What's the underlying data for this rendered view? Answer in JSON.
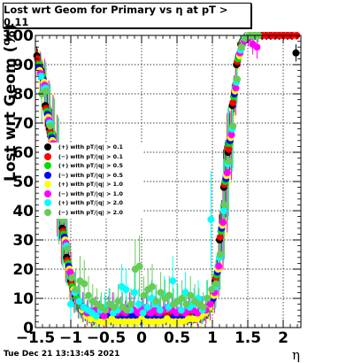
{
  "title": "Lost wrt Geom for Primary vs  η at pT > 0.11",
  "ylabel": "Lost wrt Geom (%)",
  "xlabel": "η",
  "timestamp": "Tue Dec 21 13:13:45 2021",
  "chart_data": {
    "type": "scatter",
    "title": "Lost wrt Geom for Primary vs  η at pT > 0.11",
    "xlabel": "η",
    "ylabel": "Lost wrt Geom (%)",
    "xlim": [
      -1.5,
      2.25
    ],
    "ylim": [
      0,
      100
    ],
    "grid": true,
    "legend_position": "middle-left",
    "x_ticks": [
      -1.5,
      -1,
      -0.5,
      0,
      0.5,
      1,
      1.5,
      2
    ],
    "x_tick_labels": [
      "−1.5",
      "−1",
      "−0.5",
      "0",
      "0.5",
      "1",
      "1.5",
      "2"
    ],
    "y_ticks": [
      0,
      10,
      20,
      30,
      40,
      50,
      60,
      70,
      80,
      90,
      100
    ],
    "y_tick_labels": [
      "0",
      "10",
      "20",
      "30",
      "40",
      "50",
      "60",
      "70",
      "80",
      "90",
      "100"
    ],
    "series": [
      {
        "name": "(+) with pT/|q| > 0.1",
        "color": "#000000",
        "x": [
          -1.48,
          -1.42,
          -1.36,
          -1.3,
          -1.24,
          -1.18,
          -1.12,
          -1.06,
          -1.0,
          -0.94,
          -0.88,
          -0.82,
          -0.76,
          -0.7,
          -0.64,
          -0.58,
          -0.52,
          -0.46,
          -0.4,
          -0.34,
          -0.28,
          -0.22,
          -0.16,
          -0.1,
          -0.04,
          0.02,
          0.08,
          0.14,
          0.2,
          0.26,
          0.32,
          0.38,
          0.44,
          0.5,
          0.56,
          0.62,
          0.68,
          0.74,
          0.8,
          0.86,
          0.92,
          0.98,
          1.04,
          1.1,
          1.16,
          1.22,
          1.28,
          1.34,
          1.4,
          1.46,
          1.52,
          1.58,
          1.64,
          1.7,
          1.76,
          1.82,
          1.88,
          1.94,
          2.0,
          2.06,
          2.12,
          2.18
        ],
        "y": [
          93,
          88,
          76,
          68,
          57,
          44,
          34,
          24,
          16,
          11,
          9,
          7,
          6,
          5,
          4,
          4,
          4,
          4,
          4,
          4,
          4,
          4,
          4,
          4,
          4,
          4,
          4,
          4,
          4,
          4,
          4,
          4,
          4,
          4,
          4,
          4,
          4,
          4,
          5,
          5,
          6,
          9,
          16,
          30,
          48,
          60,
          76,
          90,
          97,
          99,
          100,
          100,
          100,
          100,
          100,
          100,
          100,
          100,
          100,
          100,
          100,
          94
        ]
      },
      {
        "name": "(−) with pT/|q| > 0.1",
        "color": "#ff0000",
        "x": [
          -1.47,
          -1.41,
          -1.35,
          -1.29,
          -1.23,
          -1.17,
          -1.11,
          -1.05,
          -0.99,
          -0.93,
          -0.87,
          -0.81,
          -0.75,
          -0.69,
          -0.63,
          -0.57,
          -0.51,
          -0.45,
          -0.39,
          -0.33,
          -0.27,
          -0.21,
          -0.15,
          -0.09,
          -0.03,
          0.03,
          0.09,
          0.15,
          0.21,
          0.27,
          0.33,
          0.39,
          0.45,
          0.51,
          0.57,
          0.63,
          0.69,
          0.75,
          0.81,
          0.87,
          0.93,
          0.99,
          1.05,
          1.11,
          1.17,
          1.23,
          1.29,
          1.35,
          1.41,
          1.47,
          1.53,
          1.59,
          1.65,
          1.71,
          1.77,
          1.83,
          1.89,
          1.95,
          2.01,
          2.07,
          2.13,
          2.19
        ],
        "y": [
          92,
          87,
          75,
          67,
          56,
          43,
          33,
          23,
          15,
          10,
          8,
          6,
          5,
          4,
          4,
          4,
          4,
          4,
          5,
          4,
          4,
          5,
          4,
          4,
          4,
          4,
          4,
          5,
          4,
          5,
          4,
          4,
          4,
          4,
          4,
          5,
          4,
          5,
          5,
          5,
          6,
          9,
          17,
          31,
          49,
          61,
          77,
          91,
          97,
          99,
          100,
          100,
          100,
          100,
          100,
          100,
          100,
          100,
          100,
          100,
          100,
          100
        ]
      },
      {
        "name": "(+) with pT/|q| > 0.5",
        "color": "#00dd00",
        "x": [
          -1.46,
          -1.4,
          -1.34,
          -1.28,
          -1.22,
          -1.16,
          -1.1,
          -1.04,
          -0.98,
          -0.92,
          -0.86,
          -0.8,
          -0.74,
          -0.68,
          -0.62,
          -0.56,
          -0.5,
          -0.44,
          -0.38,
          -0.32,
          -0.26,
          -0.2,
          -0.14,
          -0.08,
          -0.02,
          0.04,
          0.1,
          0.16,
          0.22,
          0.28,
          0.34,
          0.4,
          0.46,
          0.52,
          0.58,
          0.64,
          0.7,
          0.76,
          0.82,
          0.88,
          0.94,
          1.0,
          1.06,
          1.12,
          1.18,
          1.24,
          1.3,
          1.36,
          1.42,
          1.48,
          1.54,
          1.6
        ],
        "y": [
          90,
          86,
          74,
          66,
          55,
          42,
          32,
          22,
          14,
          10,
          7,
          5,
          4,
          3,
          3,
          3,
          3,
          3,
          3,
          3,
          3,
          3,
          3,
          3,
          3,
          3,
          3,
          3,
          3,
          3,
          3,
          3,
          3,
          3,
          3,
          3,
          3,
          4,
          4,
          5,
          6,
          10,
          18,
          33,
          50,
          63,
          79,
          92,
          98,
          99,
          100,
          100
        ]
      },
      {
        "name": "(−) with pT/|q| > 0.5",
        "color": "#0000ff",
        "x": [
          -1.45,
          -1.39,
          -1.33,
          -1.27,
          -1.21,
          -1.15,
          -1.09,
          -1.03,
          -0.97,
          -0.91,
          -0.85,
          -0.79,
          -0.73,
          -0.67,
          -0.61,
          -0.55,
          -0.49,
          -0.43,
          -0.37,
          -0.31,
          -0.25,
          -0.19,
          -0.13,
          -0.07,
          -0.01,
          0.05,
          0.11,
          0.17,
          0.23,
          0.29,
          0.35,
          0.41,
          0.47,
          0.53,
          0.59,
          0.65,
          0.71,
          0.77,
          0.83,
          0.89,
          0.95,
          1.01,
          1.07,
          1.13,
          1.19,
          1.25,
          1.31,
          1.37,
          1.43,
          1.49,
          1.55,
          1.61
        ],
        "y": [
          89,
          85,
          73,
          65,
          54,
          41,
          31,
          21,
          13,
          9,
          6,
          5,
          4,
          3,
          3,
          3,
          4,
          3,
          3,
          3,
          3,
          3,
          4,
          3,
          3,
          3,
          3,
          3,
          3,
          3,
          3,
          3,
          4,
          3,
          3,
          3,
          3,
          4,
          4,
          5,
          7,
          10,
          19,
          34,
          51,
          64,
          80,
          93,
          98,
          100,
          100,
          100
        ]
      },
      {
        "name": "(+) with pT/|q| > 1.0",
        "color": "#ffff00",
        "x": [
          -1.44,
          -1.38,
          -1.32,
          -1.26,
          -1.2,
          -1.14,
          -1.08,
          -1.02,
          -0.96,
          -0.9,
          -0.84,
          -0.78,
          -0.72,
          -0.66,
          -0.6,
          -0.54,
          -0.48,
          -0.42,
          -0.36,
          -0.3,
          -0.24,
          -0.18,
          -0.12,
          -0.06,
          0.0,
          0.06,
          0.12,
          0.18,
          0.24,
          0.3,
          0.36,
          0.42,
          0.48,
          0.54,
          0.6,
          0.66,
          0.72,
          0.78,
          0.84,
          0.9,
          0.96,
          1.02,
          1.08,
          1.14,
          1.2,
          1.26,
          1.32,
          1.38,
          1.44,
          1.5,
          1.56,
          1.62
        ],
        "y": [
          88,
          84,
          72,
          64,
          53,
          40,
          30,
          20,
          13,
          9,
          6,
          4,
          3,
          3,
          2,
          2,
          2,
          3,
          2,
          2,
          2,
          2,
          2,
          2,
          3,
          2,
          2,
          2,
          2,
          2,
          3,
          2,
          2,
          2,
          2,
          3,
          3,
          3,
          4,
          5,
          7,
          11,
          20,
          35,
          52,
          65,
          81,
          93,
          98,
          100,
          100,
          100
        ]
      },
      {
        "name": "(−) with pT/|q| > 1.0",
        "color": "#ff00ff",
        "x": [
          -1.43,
          -1.37,
          -1.31,
          -1.25,
          -1.19,
          -1.13,
          -1.07,
          -1.01,
          -0.95,
          -0.89,
          -0.83,
          -0.77,
          -0.71,
          -0.65,
          -0.59,
          -0.53,
          -0.47,
          -0.41,
          -0.35,
          -0.29,
          -0.23,
          -0.17,
          -0.11,
          -0.05,
          0.01,
          0.07,
          0.13,
          0.19,
          0.25,
          0.31,
          0.37,
          0.43,
          0.49,
          0.55,
          0.61,
          0.67,
          0.73,
          0.79,
          0.85,
          0.91,
          0.97,
          1.03,
          1.09,
          1.15,
          1.21,
          1.27,
          1.33,
          1.39,
          1.45,
          1.51,
          1.57,
          1.63
        ],
        "y": [
          87,
          83,
          71,
          63,
          52,
          39,
          29,
          19,
          12,
          9,
          7,
          5,
          5,
          6,
          5,
          4,
          6,
          7,
          5,
          6,
          5,
          7,
          6,
          5,
          6,
          7,
          5,
          6,
          5,
          6,
          7,
          6,
          5,
          6,
          5,
          6,
          6,
          5,
          6,
          6,
          8,
          12,
          21,
          36,
          53,
          66,
          82,
          94,
          98,
          99,
          97,
          96
        ]
      },
      {
        "name": "(+) with pT/|q| > 2.0",
        "color": "#00ffff",
        "x": [
          -1.42,
          -1.36,
          -1.3,
          -1.24,
          -1.18,
          -1.12,
          -1.06,
          -1.0,
          -0.94,
          -0.88,
          -0.82,
          -0.76,
          -0.7,
          -0.64,
          -0.58,
          -0.52,
          -0.46,
          -0.4,
          -0.34,
          -0.28,
          -0.22,
          -0.16,
          -0.1,
          -0.04,
          0.02,
          0.08,
          0.14,
          0.2,
          0.26,
          0.32,
          0.38,
          0.44,
          0.5,
          0.56,
          0.62,
          0.68,
          0.74,
          0.8,
          0.86,
          0.92,
          0.98,
          1.04,
          1.1,
          1.16,
          1.22,
          1.28,
          1.34,
          1.4,
          1.46,
          1.52,
          1.58,
          1.64
        ],
        "y": [
          86,
          82,
          70,
          62,
          51,
          38,
          28,
          8,
          12,
          9,
          7,
          6,
          5,
          4,
          6,
          7,
          8,
          5,
          6,
          14,
          13,
          6,
          12,
          8,
          5,
          7,
          10,
          8,
          6,
          11,
          7,
          16,
          9,
          6,
          12,
          7,
          8,
          10,
          6,
          10,
          37,
          14,
          24,
          40,
          56,
          68,
          84,
          95,
          99,
          100,
          100,
          100
        ]
      },
      {
        "name": "(−) with pT/|q| > 2.0",
        "color": "#66cc55",
        "x": [
          -1.41,
          -1.35,
          -1.29,
          -1.23,
          -1.17,
          -1.11,
          -1.05,
          -0.99,
          -0.93,
          -0.87,
          -0.81,
          -0.75,
          -0.69,
          -0.63,
          -0.57,
          -0.51,
          -0.45,
          -0.39,
          -0.33,
          -0.27,
          -0.21,
          -0.15,
          -0.09,
          -0.03,
          0.03,
          0.09,
          0.15,
          0.21,
          0.27,
          0.33,
          0.39,
          0.45,
          0.51,
          0.57,
          0.63,
          0.69,
          0.75,
          0.81,
          0.87,
          0.93,
          0.99,
          1.05,
          1.11,
          1.17,
          1.23,
          1.29,
          1.35,
          1.41,
          1.47,
          1.53,
          1.59,
          1.65
        ],
        "y": [
          80,
          81,
          69,
          61,
          50,
          37,
          27,
          17,
          13,
          16,
          15,
          11,
          9,
          8,
          7,
          6,
          8,
          7,
          9,
          7,
          6,
          8,
          20,
          21,
          11,
          13,
          14,
          9,
          12,
          10,
          11,
          8,
          9,
          10,
          8,
          11,
          9,
          8,
          7,
          10,
          13,
          15,
          25,
          42,
          57,
          69,
          85,
          96,
          99,
          100,
          100,
          100
        ]
      }
    ]
  }
}
